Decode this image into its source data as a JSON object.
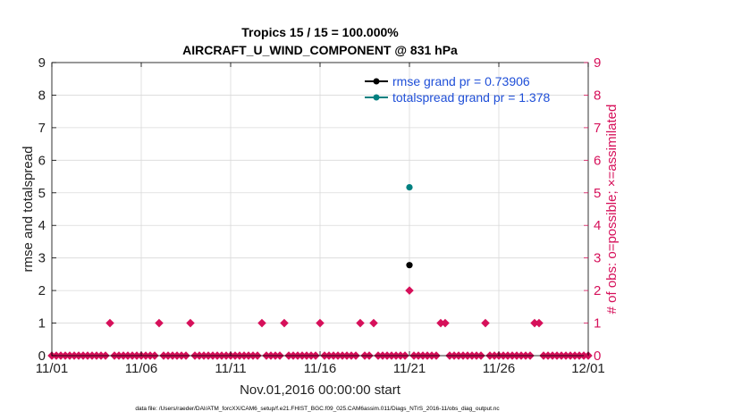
{
  "chart_data": {
    "type": "scatter",
    "title": "Tropics 15 / 15 = 100.000%",
    "subtitle": "AIRCRAFT_U_WIND_COMPONENT @ 831 hPa",
    "xlabel": "Nov.01,2016 00:00:00 start",
    "ylabel_left": "rmse and totalspread",
    "ylabel_right": "# of obs: o=possible; ×=assimilated",
    "footer": "data file: /Users/raeder/DAI/ATM_forcXX/CAM6_setup/f.e21.FHIST_BGC.f09_025.CAM6assim.011/Diags_NTrS_2016-11/obs_diag_output.nc",
    "xlim": [
      0,
      30
    ],
    "ylim": [
      0,
      9
    ],
    "x_ticks": [
      0,
      5,
      10,
      15,
      20,
      25,
      30
    ],
    "x_tick_labels": [
      "11/01",
      "11/06",
      "11/11",
      "11/16",
      "11/21",
      "11/26",
      "12/01"
    ],
    "y_ticks_left": [
      "0",
      "1",
      "2",
      "3",
      "4",
      "5",
      "6",
      "7",
      "8",
      "9"
    ],
    "y_ticks_right": [
      "0",
      "1",
      "2",
      "3",
      "4",
      "5",
      "6",
      "7",
      "8",
      "9"
    ],
    "grid": true,
    "legend_position": "top-right",
    "colors": {
      "rmse": "#000000",
      "totalspread": "#008080",
      "obs": "#d6105a",
      "legend_text": "#1f4fd8"
    },
    "series": [
      {
        "name": "rmse grand pr = 0.73906",
        "key": "rmse",
        "x": [
          20.0
        ],
        "y": [
          2.78
        ]
      },
      {
        "name": "totalspread grand pr = 1.378",
        "key": "totalspread",
        "x": [
          20.0
        ],
        "y": [
          5.17
        ]
      }
    ],
    "obs_counts": {
      "start": 0,
      "step": 0.25,
      "ones": [
        3.25,
        6.0,
        7.75,
        11.75,
        13.0,
        15.0,
        17.25,
        18.0,
        21.75,
        22.0,
        24.25,
        27.0,
        27.25
      ],
      "twos": [
        20.0
      ]
    }
  }
}
